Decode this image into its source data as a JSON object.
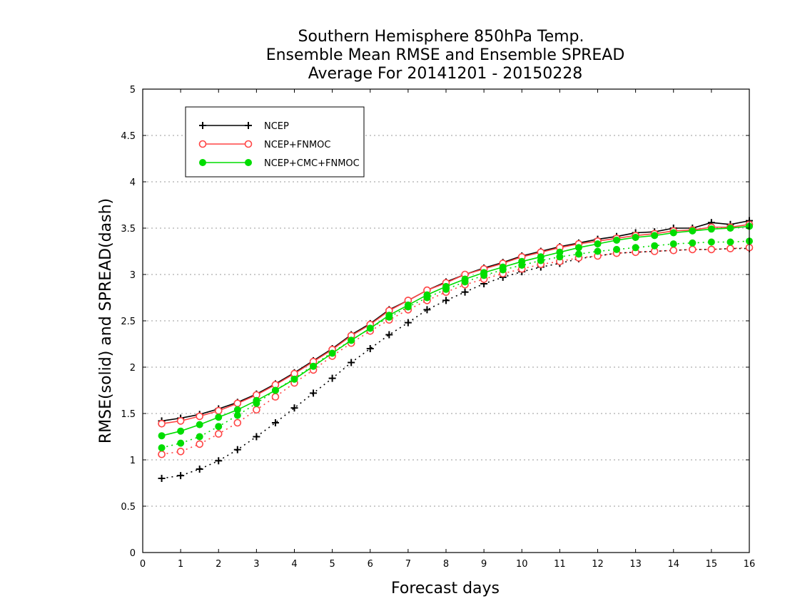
{
  "chart_data": {
    "type": "line",
    "title": [
      "Southern Hemisphere 850hPa Temp.",
      "Ensemble Mean RMSE and Ensemble SPREAD",
      "Average For 20141201 - 20150228"
    ],
    "xlabel": "Forecast days",
    "ylabel": "RMSE(solid) and SPREAD(dash)",
    "xlim": [
      0,
      16
    ],
    "ylim": [
      0,
      5
    ],
    "xticks": [
      "0",
      "1",
      "2",
      "3",
      "4",
      "5",
      "6",
      "7",
      "8",
      "9",
      "10",
      "11",
      "12",
      "13",
      "14",
      "15",
      "16"
    ],
    "yticks": [
      "0",
      "0.5",
      "1",
      "1.5",
      "2",
      "2.5",
      "3",
      "3.5",
      "4",
      "4.5",
      "5"
    ],
    "grid": true,
    "legend_position": "top-left",
    "x": [
      0.5,
      1,
      1.5,
      2,
      2.5,
      3,
      3.5,
      4,
      4.5,
      5,
      5.5,
      6,
      6.5,
      7,
      7.5,
      8,
      8.5,
      9,
      9.5,
      10,
      10.5,
      11,
      11.5,
      12,
      12.5,
      13,
      13.5,
      14,
      14.5,
      15,
      15.5,
      16
    ],
    "series": [
      {
        "name": "NCEP",
        "color": "#000000",
        "marker": "plus",
        "style": "solid",
        "values": [
          1.42,
          1.45,
          1.49,
          1.55,
          1.62,
          1.71,
          1.82,
          1.94,
          2.07,
          2.2,
          2.35,
          2.47,
          2.62,
          2.72,
          2.83,
          2.92,
          3.0,
          3.07,
          3.13,
          3.2,
          3.25,
          3.3,
          3.34,
          3.38,
          3.41,
          3.45,
          3.46,
          3.5,
          3.5,
          3.56,
          3.54,
          3.58
        ]
      },
      {
        "name": "NCEP",
        "color": "#000000",
        "marker": "plus",
        "style": "dash",
        "values": [
          0.8,
          0.83,
          0.9,
          0.99,
          1.11,
          1.25,
          1.4,
          1.56,
          1.72,
          1.88,
          2.05,
          2.2,
          2.35,
          2.48,
          2.62,
          2.72,
          2.81,
          2.9,
          2.97,
          3.03,
          3.08,
          3.12,
          3.17,
          3.2,
          3.23,
          3.24,
          3.25,
          3.26,
          3.27,
          3.27,
          3.28,
          3.28
        ]
      },
      {
        "name": "NCEP+FNMOC",
        "color": "#ff4444",
        "marker": "open-circle",
        "style": "solid",
        "values": [
          1.39,
          1.42,
          1.47,
          1.53,
          1.61,
          1.7,
          1.81,
          1.93,
          2.06,
          2.19,
          2.34,
          2.46,
          2.61,
          2.72,
          2.83,
          2.91,
          3.0,
          3.06,
          3.12,
          3.19,
          3.24,
          3.29,
          3.33,
          3.36,
          3.39,
          3.42,
          3.44,
          3.47,
          3.48,
          3.51,
          3.51,
          3.54
        ]
      },
      {
        "name": "NCEP+FNMOC",
        "color": "#ff4444",
        "marker": "open-circle",
        "style": "dash",
        "values": [
          1.06,
          1.09,
          1.17,
          1.28,
          1.4,
          1.54,
          1.68,
          1.83,
          1.97,
          2.12,
          2.26,
          2.39,
          2.51,
          2.62,
          2.72,
          2.81,
          2.89,
          2.95,
          3.01,
          3.06,
          3.11,
          3.14,
          3.18,
          3.2,
          3.23,
          3.24,
          3.25,
          3.26,
          3.27,
          3.27,
          3.28,
          3.29
        ]
      },
      {
        "name": "NCEP+CMC+FNMOC",
        "color": "#00dd00",
        "marker": "filled-circle",
        "style": "solid",
        "values": [
          1.26,
          1.31,
          1.38,
          1.46,
          1.54,
          1.64,
          1.75,
          1.87,
          2.01,
          2.15,
          2.29,
          2.42,
          2.56,
          2.67,
          2.78,
          2.87,
          2.95,
          3.02,
          3.08,
          3.14,
          3.19,
          3.24,
          3.29,
          3.33,
          3.37,
          3.4,
          3.42,
          3.45,
          3.47,
          3.49,
          3.5,
          3.52
        ]
      },
      {
        "name": "NCEP+CMC+FNMOC",
        "color": "#00dd00",
        "marker": "filled-circle",
        "style": "dash",
        "values": [
          1.13,
          1.18,
          1.25,
          1.36,
          1.48,
          1.61,
          1.75,
          1.88,
          2.02,
          2.16,
          2.29,
          2.42,
          2.54,
          2.65,
          2.75,
          2.84,
          2.92,
          2.99,
          3.05,
          3.1,
          3.15,
          3.19,
          3.22,
          3.25,
          3.27,
          3.29,
          3.31,
          3.33,
          3.34,
          3.35,
          3.35,
          3.36
        ]
      }
    ],
    "legend": [
      "NCEP",
      "NCEP+FNMOC",
      "NCEP+CMC+FNMOC"
    ]
  }
}
